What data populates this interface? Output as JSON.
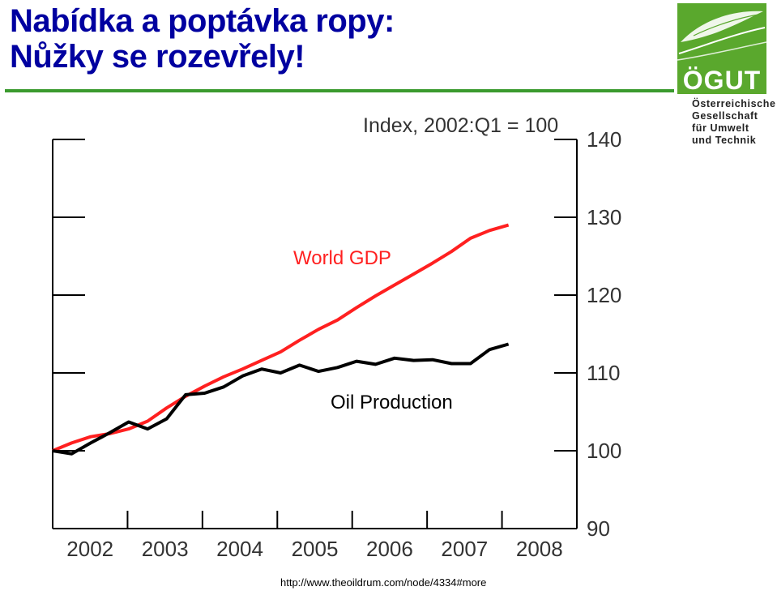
{
  "slide": {
    "title_line1": "Nabídka a poptávka ropy:",
    "title_line2": "Nůžky se rozevřely!",
    "title_color": "#0000a0",
    "rule_color": "#3a9a2e",
    "source": "http://www.theoildrum.com/node/4334#more"
  },
  "logo": {
    "word": "ÖGUT",
    "lines": [
      "Österreichische",
      "Gesellschaft",
      "für Umwelt",
      "und Technik"
    ],
    "color": "#5aa82d",
    "icon": "leaf-icon"
  },
  "chart_data": {
    "type": "line",
    "title": "Index, 2002:Q1 = 100",
    "xlabel": "",
    "ylabel": "",
    "ylim": [
      90,
      140
    ],
    "xlim": [
      2002.0,
      2008.9
    ],
    "yticks": [
      90,
      100,
      110,
      120,
      130,
      140
    ],
    "xticks": [
      "2002",
      "2003",
      "2004",
      "2005",
      "2006",
      "2007",
      "2008"
    ],
    "grid": false,
    "series": [
      {
        "name": "World GDP",
        "color": "#ff2020",
        "x": [
          2002.0,
          2002.25,
          2002.5,
          2002.75,
          2003.0,
          2003.25,
          2003.5,
          2003.75,
          2004.0,
          2004.25,
          2004.5,
          2004.75,
          2005.0,
          2005.25,
          2005.5,
          2005.75,
          2006.0,
          2006.25,
          2006.5,
          2006.75,
          2007.0,
          2007.25,
          2007.5,
          2007.75,
          2008.0
        ],
        "values": [
          100,
          101,
          101.8,
          102.2,
          102.8,
          103.8,
          105.5,
          107,
          108.3,
          109.5,
          110.5,
          111.6,
          112.7,
          114.2,
          115.6,
          116.8,
          118.4,
          119.9,
          121.3,
          122.7,
          124.1,
          125.6,
          127.3,
          128.3,
          129
        ]
      },
      {
        "name": "Oil Production",
        "color": "#000000",
        "x": [
          2002.0,
          2002.25,
          2002.5,
          2002.75,
          2003.0,
          2003.25,
          2003.5,
          2003.75,
          2004.0,
          2004.25,
          2004.5,
          2004.75,
          2005.0,
          2005.25,
          2005.5,
          2005.75,
          2006.0,
          2006.25,
          2006.5,
          2006.75,
          2007.0,
          2007.25,
          2007.5,
          2007.75,
          2008.0
        ],
        "values": [
          100,
          99.6,
          101,
          102.3,
          103.7,
          102.8,
          104.1,
          107.2,
          107.4,
          108.2,
          109.6,
          110.5,
          110,
          111,
          110.2,
          110.7,
          111.5,
          111.1,
          111.9,
          111.6,
          111.7,
          111.2,
          111.2,
          113,
          113.7
        ]
      }
    ]
  }
}
